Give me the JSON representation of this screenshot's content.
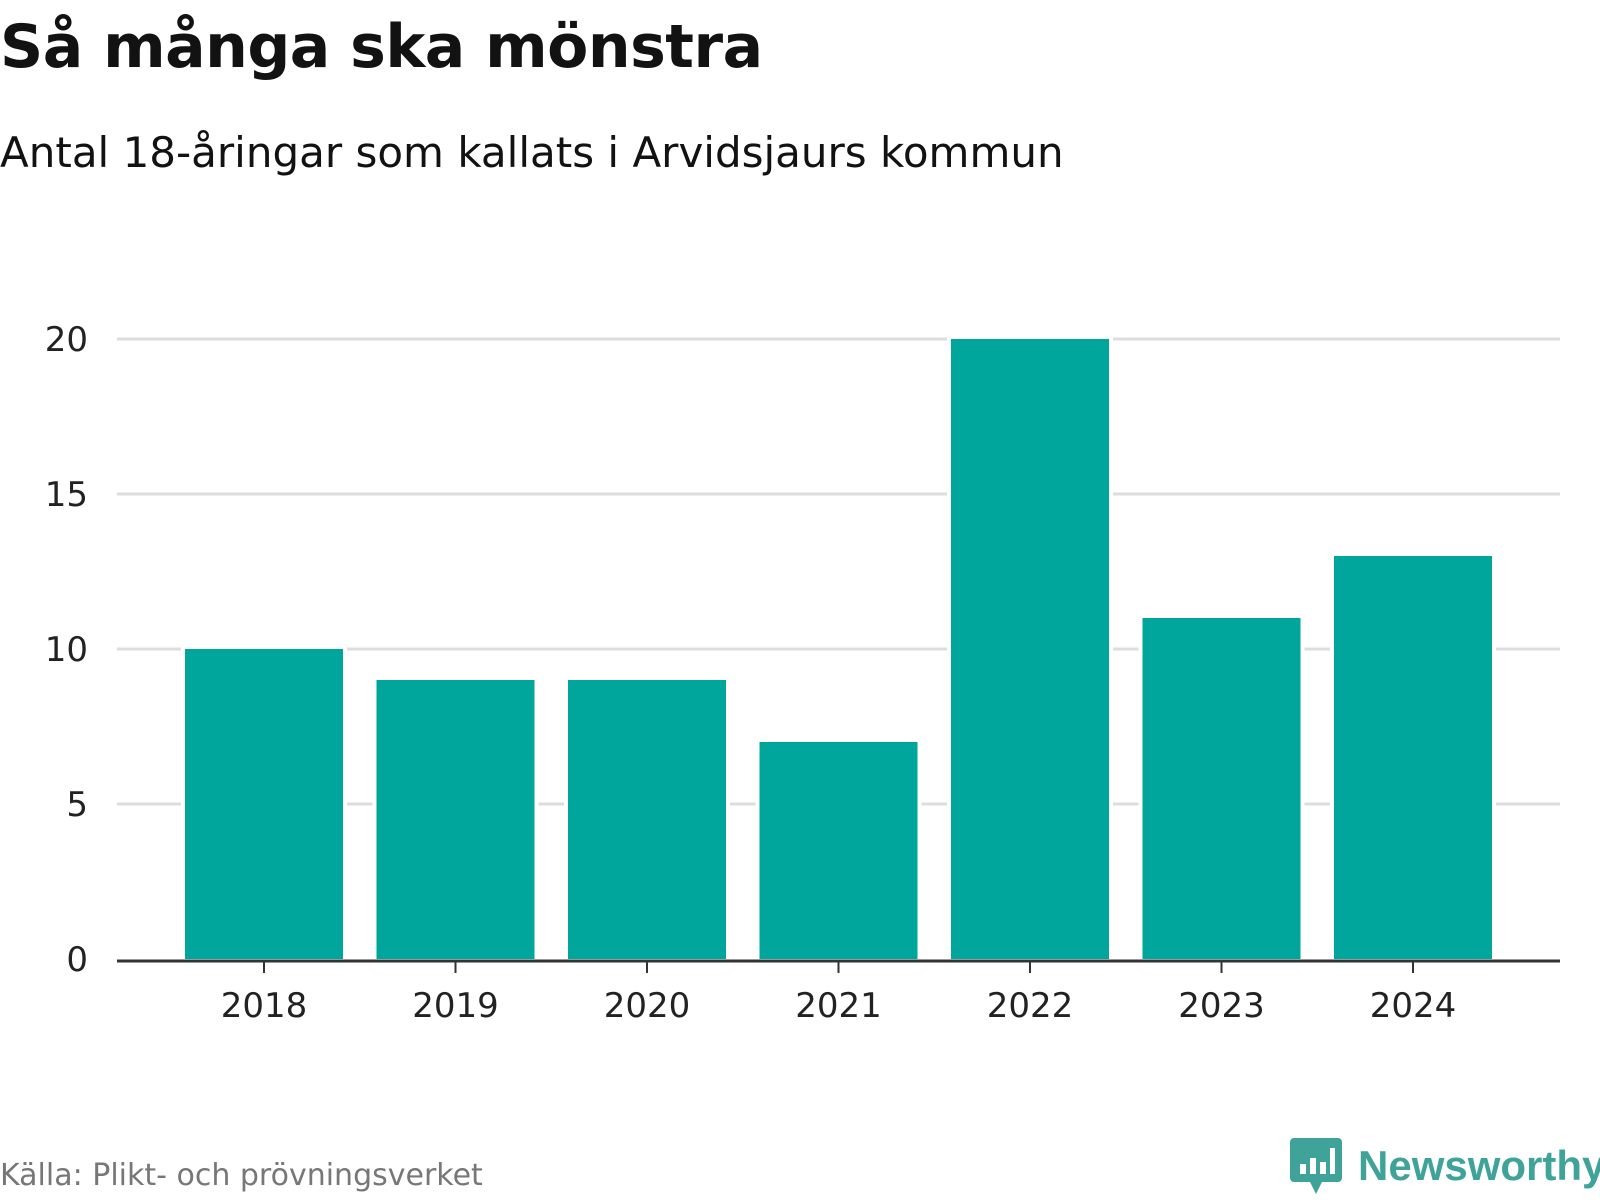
{
  "header": {
    "title": "Så många ska mönstra",
    "subtitle": "Antal 18-åringar som kallats i Arvidsjaurs kommun"
  },
  "footer": {
    "source": "Källa: Plikt- och prövningsverket",
    "brand": "Newsworthy"
  },
  "colors": {
    "bar": "#00a59b",
    "grid": "#dddddd",
    "axis": "#333333",
    "brand": "#3fa39a"
  },
  "chart_data": {
    "type": "bar",
    "title": "Så många ska mönstra",
    "subtitle": "Antal 18-åringar som kallats i Arvidsjaurs kommun",
    "categories": [
      "2018",
      "2019",
      "2020",
      "2021",
      "2022",
      "2023",
      "2024"
    ],
    "values": [
      10,
      9,
      9,
      7,
      20,
      11,
      13
    ],
    "ylim": [
      0,
      20
    ],
    "yticks": [
      0,
      5,
      10,
      15,
      20
    ],
    "grid": true,
    "legend": "none"
  }
}
